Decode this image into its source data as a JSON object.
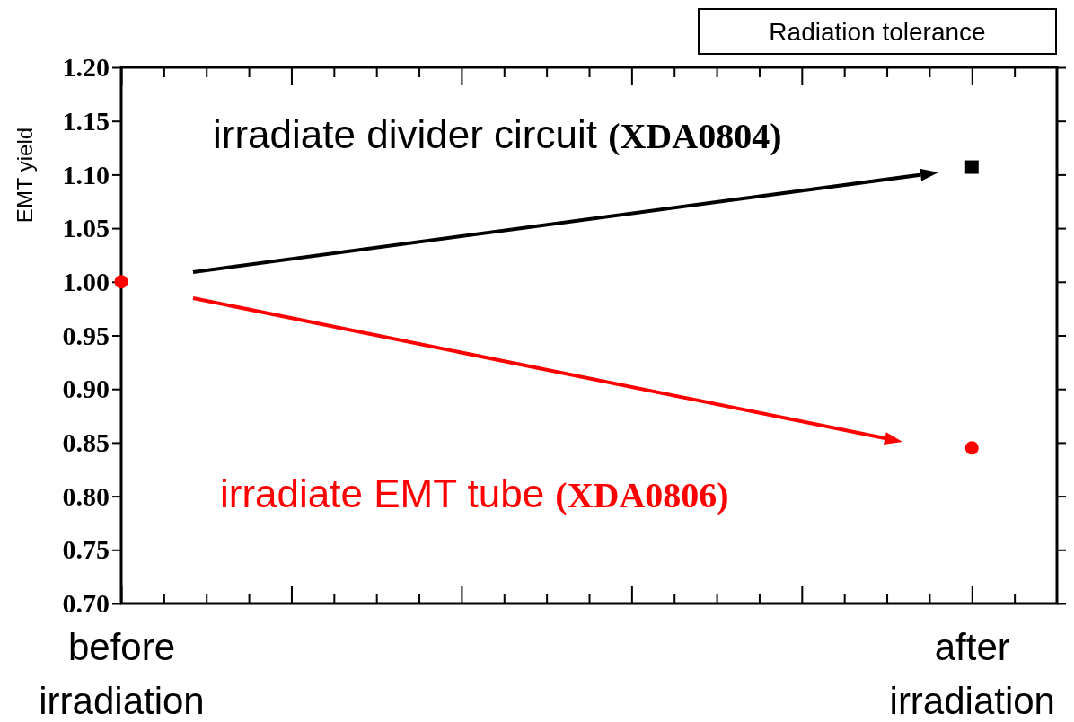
{
  "chart_data": {
    "type": "scatter",
    "title": "Radiation tolerance",
    "ylabel": "EMT yield",
    "categories": [
      "before irradiation",
      null,
      null,
      null,
      null,
      null,
      null,
      null,
      null,
      null,
      null,
      null,
      null,
      null,
      null,
      null,
      null,
      null,
      null,
      null,
      "after irradiation",
      null
    ],
    "ylim": [
      0.7,
      1.2
    ],
    "yticks": [
      {
        "value": 0.7,
        "label": "0.70"
      },
      {
        "value": 0.75,
        "label": "0.75"
      },
      {
        "value": 0.8,
        "label": "0.80"
      },
      {
        "value": 0.85,
        "label": "0.85"
      },
      {
        "value": 0.9,
        "label": "0.90"
      },
      {
        "value": 0.95,
        "label": "0.95"
      },
      {
        "value": 1,
        "label": "1.00"
      },
      {
        "value": 1.05,
        "label": "1.05"
      },
      {
        "value": 1.1,
        "label": "1.10"
      },
      {
        "value": 1.15,
        "label": "1.15"
      },
      {
        "value": 1.2,
        "label": "1.20"
      }
    ],
    "series": [
      {
        "color": "#000000",
        "marker": "square",
        "values": [
          null,
          null,
          null,
          null,
          null,
          null,
          null,
          null,
          null,
          null,
          null,
          null,
          null,
          null,
          null,
          null,
          null,
          null,
          null,
          null,
          1.107,
          null
        ]
      },
      {
        "color": "#ff0000",
        "marker": "circle",
        "values": [
          1.0,
          null,
          null,
          null,
          null,
          null,
          null,
          null,
          null,
          null,
          null,
          null,
          null,
          null,
          null,
          null,
          null,
          null,
          null,
          null,
          0.845,
          null
        ]
      }
    ],
    "annotations": [
      "irradiate divider circuit (XDA0804)",
      "irradiate EMT tube (XDA0806)"
    ]
  }
}
